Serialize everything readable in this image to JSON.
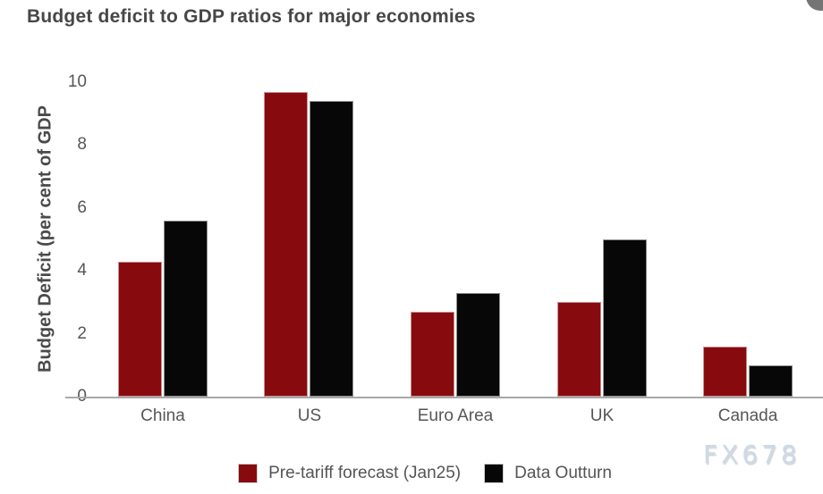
{
  "watermark": "FX678",
  "theme": {
    "title_color": "#474747",
    "tick_text_color": "#565656",
    "axis_line_color": "#a8a8a8",
    "watermark_color": "#cdd9e6",
    "corner_circle_color": "#757575"
  },
  "chart_data": {
    "type": "bar",
    "title": "Budget deficit to GDP ratios for major economies",
    "ylabel": "Budget Deficit (per cent of GDP",
    "xlabel": "",
    "categories": [
      "China",
      "US",
      "Euro Area",
      "UK",
      "Canada"
    ],
    "series": [
      {
        "name": "Pre-tariff forecast (Jan25)",
        "color": "#870b0e",
        "values": [
          4.3,
          9.7,
          2.7,
          3.0,
          1.6
        ]
      },
      {
        "name": "Data Outturn",
        "color": "#070707",
        "values": [
          5.6,
          9.4,
          3.3,
          5.0,
          1.0
        ]
      }
    ],
    "ylim": [
      0,
      10
    ],
    "yticks": [
      0,
      2,
      4,
      6,
      8,
      10
    ],
    "grid": false,
    "legend_position": "bottom"
  }
}
